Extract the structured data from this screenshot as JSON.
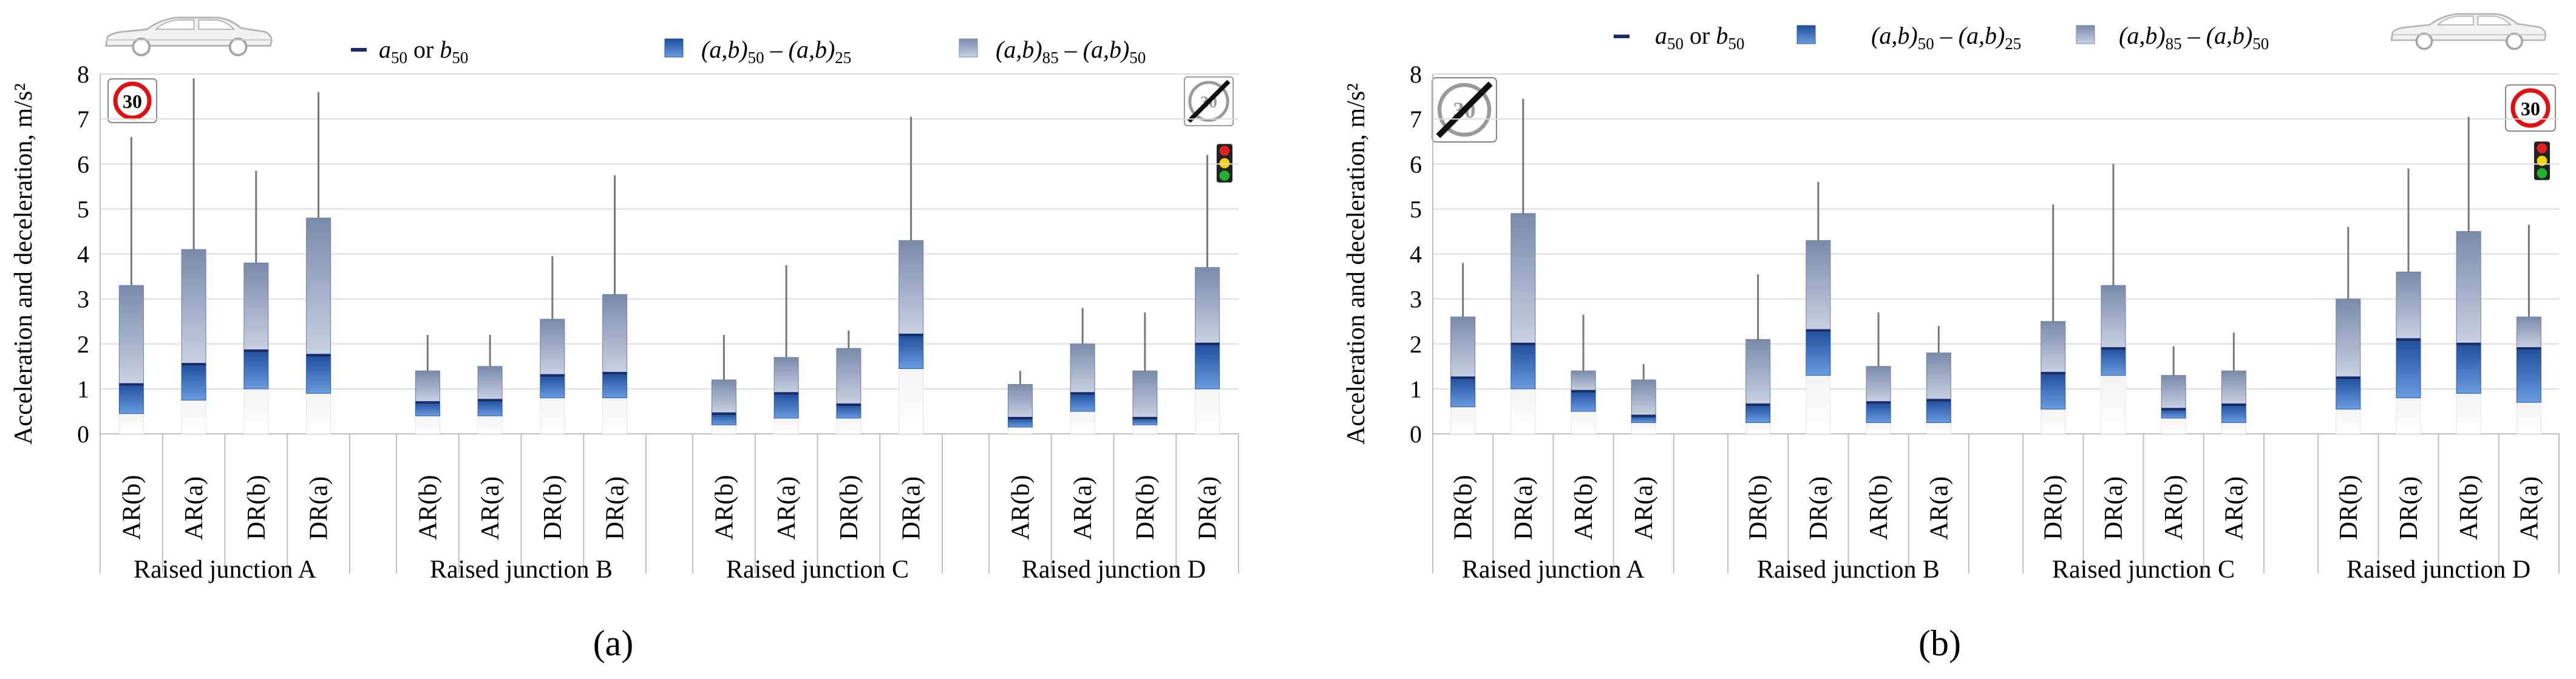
{
  "colors": {
    "iqr_lower_top": "#1f4e9b",
    "iqr_lower_bottom": "#5b8fd6",
    "upper_top": "#7f8fae",
    "upper_bottom": "#c4cede",
    "median": "#1b2b6a",
    "whisker": "#777777",
    "grid": "#dddddd",
    "axis": "#bfbfbf",
    "text": "#000000"
  },
  "legend": {
    "median": {
      "pre": "a",
      "sub": "50",
      "mid": " or ",
      "pre2": "b",
      "sub2": "50"
    },
    "iqr_lower": {
      "t1": "(a,b)",
      "s1": "50",
      "t2": " – (a,b)",
      "s2": "25"
    },
    "iqr_upper": {
      "t1": "(a,b)",
      "s1": "85",
      "t2": " – (a,b)",
      "s2": "50"
    }
  },
  "signs": {
    "speed_limit": "30"
  },
  "chart_data": [
    {
      "type": "box",
      "panel_label": "(a)",
      "ylabel": "Acceleration and deceleration, m/s²",
      "ylim": [
        0,
        8
      ],
      "yticks": [
        "0",
        "1",
        "2",
        "3",
        "4",
        "5",
        "6",
        "7",
        "8"
      ],
      "groups": [
        {
          "label": "Raised junction A",
          "boxes": [
            {
              "cat": "AR(b)",
              "min": 0.0,
              "q25": 0.45,
              "median": 1.1,
              "q85": 3.3,
              "max": 6.6
            },
            {
              "cat": "AR(a)",
              "min": 0.05,
              "q25": 0.75,
              "median": 1.55,
              "q85": 4.1,
              "max": 7.9
            },
            {
              "cat": "DR(b)",
              "min": 0.1,
              "q25": 1.0,
              "median": 1.85,
              "q85": 3.8,
              "max": 5.85
            },
            {
              "cat": "DR(a)",
              "min": 0.0,
              "q25": 0.9,
              "median": 1.75,
              "q85": 4.8,
              "max": 7.6
            }
          ]
        },
        {
          "label": "Raised junction B",
          "boxes": [
            {
              "cat": "AR(b)",
              "min": 0.0,
              "q25": 0.4,
              "median": 0.7,
              "q85": 1.4,
              "max": 2.2
            },
            {
              "cat": "AR(a)",
              "min": 0.0,
              "q25": 0.4,
              "median": 0.75,
              "q85": 1.5,
              "max": 2.2
            },
            {
              "cat": "DR(b)",
              "min": 0.0,
              "q25": 0.8,
              "median": 1.3,
              "q85": 2.55,
              "max": 3.95
            },
            {
              "cat": "DR(a)",
              "min": 0.05,
              "q25": 0.8,
              "median": 1.35,
              "q85": 3.1,
              "max": 5.75
            }
          ]
        },
        {
          "label": "Raised junction C",
          "boxes": [
            {
              "cat": "AR(b)",
              "min": 0.0,
              "q25": 0.2,
              "median": 0.45,
              "q85": 1.2,
              "max": 2.2
            },
            {
              "cat": "AR(a)",
              "min": 0.0,
              "q25": 0.35,
              "median": 0.9,
              "q85": 1.7,
              "max": 3.75
            },
            {
              "cat": "DR(b)",
              "min": 0.0,
              "q25": 0.35,
              "median": 0.65,
              "q85": 1.9,
              "max": 2.3
            },
            {
              "cat": "DR(a)",
              "min": 0.0,
              "q25": 1.45,
              "median": 2.2,
              "q85": 4.3,
              "max": 7.05
            }
          ]
        },
        {
          "label": "Raised junction D",
          "boxes": [
            {
              "cat": "AR(b)",
              "min": 0.0,
              "q25": 0.15,
              "median": 0.35,
              "q85": 1.1,
              "max": 1.4
            },
            {
              "cat": "AR(a)",
              "min": 0.0,
              "q25": 0.5,
              "median": 0.9,
              "q85": 2.0,
              "max": 2.8
            },
            {
              "cat": "DR(b)",
              "min": 0.0,
              "q25": 0.2,
              "median": 0.35,
              "q85": 1.4,
              "max": 2.7
            },
            {
              "cat": "DR(a)",
              "min": 0.05,
              "q25": 1.0,
              "median": 2.0,
              "q85": 3.7,
              "max": 6.2
            }
          ]
        }
      ]
    },
    {
      "type": "box",
      "panel_label": "(b)",
      "ylabel": "Acceleration and deceleration, m/s²",
      "ylim": [
        0,
        8
      ],
      "yticks": [
        "0",
        "1",
        "2",
        "3",
        "4",
        "5",
        "6",
        "7",
        "8"
      ],
      "groups": [
        {
          "label": "Raised junction A",
          "boxes": [
            {
              "cat": "DR(b)",
              "min": 0.0,
              "q25": 0.6,
              "median": 1.25,
              "q85": 2.6,
              "max": 3.8
            },
            {
              "cat": "DR(a)",
              "min": 0.05,
              "q25": 1.0,
              "median": 2.0,
              "q85": 4.9,
              "max": 7.45
            },
            {
              "cat": "AR(b)",
              "min": 0.0,
              "q25": 0.5,
              "median": 0.95,
              "q85": 1.4,
              "max": 2.65
            },
            {
              "cat": "AR(a)",
              "min": 0.0,
              "q25": 0.25,
              "median": 0.4,
              "q85": 1.2,
              "max": 1.55
            }
          ]
        },
        {
          "label": "Raised junction B",
          "boxes": [
            {
              "cat": "DR(b)",
              "min": 0.0,
              "q25": 0.25,
              "median": 0.65,
              "q85": 2.1,
              "max": 3.55
            },
            {
              "cat": "DR(a)",
              "min": 0.15,
              "q25": 1.3,
              "median": 2.3,
              "q85": 4.3,
              "max": 5.6
            },
            {
              "cat": "AR(b)",
              "min": 0.05,
              "q25": 0.25,
              "median": 0.7,
              "q85": 1.5,
              "max": 2.7
            },
            {
              "cat": "AR(a)",
              "min": 0.0,
              "q25": 0.25,
              "median": 0.75,
              "q85": 1.8,
              "max": 2.4
            }
          ]
        },
        {
          "label": "Raised junction C",
          "boxes": [
            {
              "cat": "DR(b)",
              "min": 0.0,
              "q25": 0.55,
              "median": 1.35,
              "q85": 2.5,
              "max": 5.1
            },
            {
              "cat": "DR(a)",
              "min": 0.2,
              "q25": 1.3,
              "median": 1.9,
              "q85": 3.3,
              "max": 6.0
            },
            {
              "cat": "AR(b)",
              "min": 0.1,
              "q25": 0.35,
              "median": 0.55,
              "q85": 1.3,
              "max": 1.95
            },
            {
              "cat": "AR(a)",
              "min": 0.0,
              "q25": 0.25,
              "median": 0.65,
              "q85": 1.4,
              "max": 2.25
            }
          ]
        },
        {
          "label": "Raised junction D",
          "boxes": [
            {
              "cat": "DR(b)",
              "min": 0.0,
              "q25": 0.55,
              "median": 1.25,
              "q85": 3.0,
              "max": 4.6
            },
            {
              "cat": "DR(a)",
              "min": 0.1,
              "q25": 0.8,
              "median": 2.1,
              "q85": 3.6,
              "max": 5.9
            },
            {
              "cat": "AR(b)",
              "min": 0.0,
              "q25": 0.9,
              "median": 2.0,
              "q85": 4.5,
              "max": 7.05
            },
            {
              "cat": "AR(a)",
              "min": 0.1,
              "q25": 0.7,
              "median": 1.9,
              "q85": 2.6,
              "max": 4.65
            }
          ]
        }
      ]
    }
  ]
}
